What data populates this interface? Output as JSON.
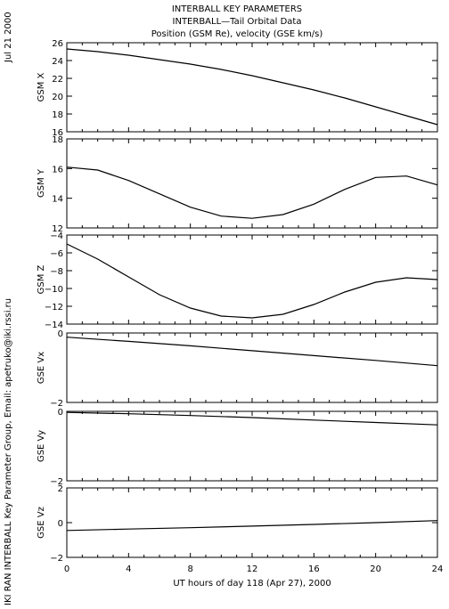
{
  "header": {
    "title_line1": "INTERBALL KEY PARAMETERS",
    "title_line2": "INTERBALL—Tail Orbital Data",
    "title_line3": "Position (GSM Re), velocity (GSE km/s)"
  },
  "side_labels": {
    "date": "Jul 21 2000",
    "credit": "IKI RAN INTERBALL Key Parameter Group, Email: apetruko@iki.rssi.ru"
  },
  "x_axis": {
    "label": "UT hours of day 118 (Apr 27), 2000",
    "min": 0,
    "max": 24,
    "ticks": [
      0,
      4,
      8,
      12,
      16,
      20,
      24
    ],
    "tick_labels": [
      "0",
      "4",
      "8",
      "12",
      "16",
      "20",
      "24"
    ]
  },
  "chart_data": [
    {
      "type": "line",
      "ylabel": "GSM X",
      "ylim": [
        16,
        26
      ],
      "yticks": [
        16,
        18,
        20,
        22,
        24,
        26
      ],
      "ytick_labels": [
        "16",
        "18",
        "20",
        "22",
        "24",
        "26"
      ],
      "x": [
        0,
        2,
        4,
        6,
        8,
        10,
        12,
        14,
        16,
        18,
        20,
        22,
        24
      ],
      "values": [
        25.3,
        25.0,
        24.6,
        24.1,
        23.6,
        23.0,
        22.3,
        21.5,
        20.7,
        19.8,
        18.8,
        17.8,
        16.8
      ]
    },
    {
      "type": "line",
      "ylabel": "GSM Y",
      "ylim": [
        12,
        18
      ],
      "yticks": [
        12,
        14,
        16,
        18
      ],
      "ytick_labels": [
        "12",
        "14",
        "16",
        "18"
      ],
      "x": [
        0,
        2,
        4,
        6,
        8,
        10,
        12,
        14,
        16,
        18,
        20,
        22,
        24
      ],
      "values": [
        16.1,
        15.9,
        15.2,
        14.3,
        13.4,
        12.8,
        12.65,
        12.9,
        13.6,
        14.6,
        15.4,
        15.5,
        14.9
      ]
    },
    {
      "type": "line",
      "ylabel": "GSM Z",
      "ylim": [
        -14,
        -4
      ],
      "yticks": [
        -14,
        -12,
        -10,
        -8,
        -6,
        -4
      ],
      "ytick_labels": [
        "−14",
        "−12",
        "−10",
        "−8",
        "−6",
        "−4"
      ],
      "x": [
        0,
        2,
        4,
        6,
        8,
        10,
        12,
        14,
        16,
        18,
        20,
        22,
        24
      ],
      "values": [
        -5.0,
        -6.7,
        -8.7,
        -10.7,
        -12.2,
        -13.1,
        -13.3,
        -12.9,
        -11.8,
        -10.4,
        -9.3,
        -8.8,
        -9.0
      ]
    },
    {
      "type": "line",
      "ylabel": "GSE Vx",
      "ylim": [
        -2,
        0
      ],
      "yticks": [
        -2,
        0
      ],
      "ytick_labels": [
        "−2",
        "0"
      ],
      "x": [
        0,
        4,
        8,
        12,
        16,
        20,
        24
      ],
      "values": [
        -0.12,
        -0.24,
        -0.37,
        -0.51,
        -0.65,
        -0.79,
        -0.94
      ]
    },
    {
      "type": "line",
      "ylabel": "GSE Vy",
      "ylim": [
        -2,
        0
      ],
      "yticks": [
        -2,
        0
      ],
      "ytick_labels": [
        "−2",
        "0"
      ],
      "x": [
        0,
        4,
        8,
        12,
        16,
        20,
        24
      ],
      "values": [
        -0.03,
        -0.07,
        -0.12,
        -0.18,
        -0.25,
        -0.32,
        -0.39
      ]
    },
    {
      "type": "line",
      "ylabel": "GSE Vz",
      "ylim": [
        -2,
        2
      ],
      "yticks": [
        -2,
        0,
        2
      ],
      "ytick_labels": [
        "−2",
        "0",
        "2"
      ],
      "x": [
        0,
        4,
        8,
        12,
        16,
        20,
        24
      ],
      "values": [
        -0.45,
        -0.37,
        -0.29,
        -0.2,
        -0.1,
        0.0,
        0.12
      ]
    }
  ]
}
